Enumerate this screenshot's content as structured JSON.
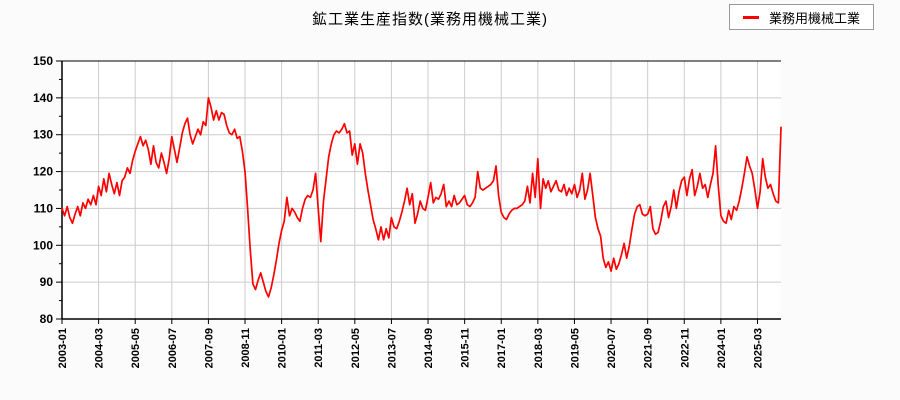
{
  "title": "鉱工業生産指数(業務用機械工業)",
  "legend": {
    "label": "業務用機械工業",
    "line_color": "#ff0000"
  },
  "colors": {
    "line": "#ff0000",
    "grid": "#cccccc",
    "axis": "#000000",
    "plot_bg": "#ffffff",
    "page_bg": "#fbfbfb",
    "legend_border": "#999999",
    "text": "#000000"
  },
  "chart_data": {
    "type": "line",
    "title": "鉱工業生産指数(業務用機械工業)",
    "xlabel": "",
    "ylabel": "",
    "ylim": [
      80,
      150
    ],
    "y_major_ticks": [
      80,
      90,
      100,
      110,
      120,
      130,
      140,
      150
    ],
    "y_minor_step": 5,
    "grid": true,
    "legend_position": "top-right",
    "x_start": "2003-01",
    "frequency": "monthly",
    "x_tick_interval_months": 14,
    "x_tick_labels": [
      "2003-01",
      "2004-03",
      "2005-05",
      "2006-07",
      "2007-09",
      "2008-11",
      "2010-01",
      "2011-03",
      "2012-05",
      "2013-07",
      "2014-09",
      "2015-11",
      "2017-01",
      "2018-03",
      "2019-05",
      "2020-07",
      "2021-09",
      "2022-11",
      "2024-01",
      "2025-03"
    ],
    "series": [
      {
        "name": "業務用機械工業",
        "color": "#ff0000",
        "values": [
          110,
          108,
          110.5,
          107.5,
          106,
          108.5,
          110.5,
          108,
          111.5,
          110,
          112.5,
          111,
          113.5,
          111,
          116,
          113.5,
          118,
          114.5,
          119.5,
          116.5,
          114,
          117,
          113.5,
          117.5,
          118.5,
          121,
          119.5,
          123,
          125.5,
          127.5,
          129.5,
          127,
          128.5,
          126,
          122,
          127,
          122.5,
          121,
          125,
          122.5,
          119.5,
          123.5,
          129.5,
          126,
          122.5,
          126.5,
          130.5,
          133,
          134.5,
          130,
          127.5,
          129.5,
          131.5,
          130,
          133.5,
          132.5,
          140,
          137.5,
          134,
          136.5,
          134,
          136,
          135.5,
          132.5,
          130.5,
          130,
          131.5,
          129,
          129.5,
          125.5,
          120,
          110,
          99,
          89.5,
          88,
          90.5,
          92.5,
          90,
          87.5,
          86,
          88.5,
          92,
          96,
          100.5,
          104,
          106.5,
          113,
          108,
          110,
          109,
          107.5,
          106.5,
          110,
          112.5,
          113.5,
          113,
          115,
          119.5,
          110,
          101,
          112,
          118,
          124,
          127.5,
          130,
          131,
          130.5,
          131.5,
          133,
          130.5,
          131,
          124.5,
          127.5,
          122,
          127.5,
          125,
          119.5,
          115,
          111,
          107,
          104.5,
          101.5,
          105,
          101.5,
          104.5,
          102,
          107.5,
          105,
          104.5,
          106.5,
          109,
          112,
          115.5,
          111,
          114,
          106,
          108.5,
          112,
          110,
          109.5,
          113,
          117,
          111.5,
          113,
          112.5,
          114,
          116.5,
          110.5,
          112,
          110.5,
          113.5,
          111,
          111.5,
          112.5,
          113.5,
          111,
          110.5,
          111.5,
          113,
          120,
          115.5,
          115,
          115.5,
          116,
          116.5,
          117.5,
          121.5,
          113.5,
          109,
          107.5,
          107,
          108.5,
          109.5,
          110,
          110,
          110.5,
          111,
          112,
          116,
          111.5,
          119.5,
          113,
          123.5,
          110,
          118,
          115.5,
          117.5,
          114.5,
          116,
          117.5,
          115,
          114.5,
          116.5,
          113.5,
          115.5,
          114,
          116.5,
          113,
          115,
          119.5,
          112.5,
          115,
          119.5,
          113.5,
          107.5,
          104.5,
          102.5,
          96.5,
          94,
          95.5,
          93,
          96.5,
          93.5,
          95,
          97.5,
          100.5,
          96.5,
          100,
          104.5,
          108.5,
          110.5,
          111,
          108.5,
          108,
          108.5,
          110.5,
          104.5,
          103,
          103.5,
          106.5,
          110.5,
          112,
          107.5,
          110.5,
          115,
          110,
          114.5,
          117.5,
          118.5,
          113.5,
          118,
          120.5,
          113.5,
          116,
          119.5,
          115.5,
          116.5,
          113,
          116.5,
          119.5,
          127,
          116,
          108,
          106.5,
          106,
          109.5,
          107,
          110.5,
          109.5,
          112,
          115.5,
          119.5,
          124,
          121.5,
          119.5,
          115,
          110,
          114.5,
          123.5,
          118.5,
          115.5,
          116.5,
          114,
          112,
          111.5,
          132
        ]
      }
    ]
  }
}
